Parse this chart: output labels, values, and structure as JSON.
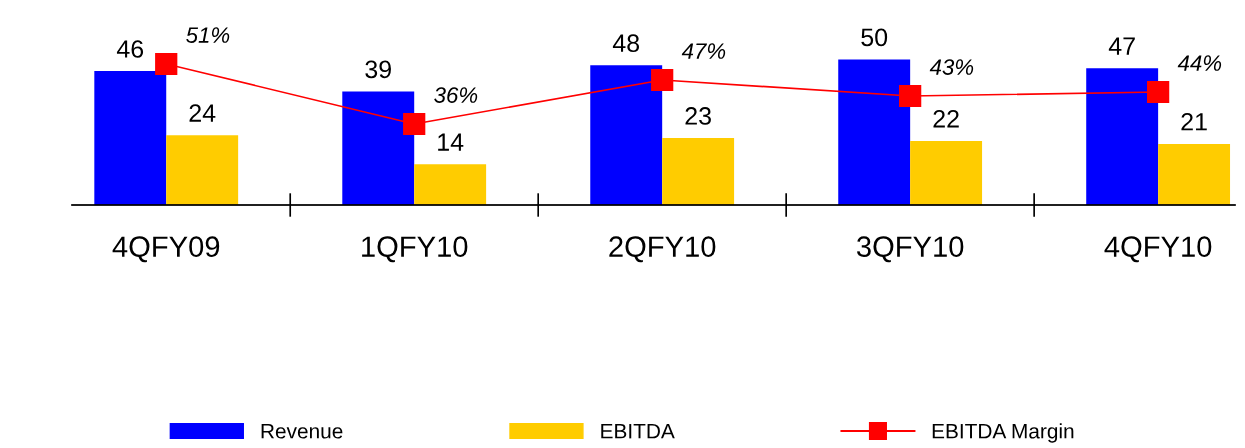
{
  "chart_data": {
    "type": "bar",
    "categories": [
      "4QFY09",
      "1QFY10",
      "2QFY10",
      "3QFY10",
      "4QFY10"
    ],
    "series": [
      {
        "name": "Revenue",
        "color": "#0000ff",
        "values": [
          46,
          39,
          48,
          50,
          47
        ]
      },
      {
        "name": "EBITDA",
        "color": "#ffcc00",
        "values": [
          24,
          14,
          23,
          22,
          21
        ]
      },
      {
        "name": "EBITDA Margin",
        "type": "line",
        "axis": "y2",
        "color": "#ff0000",
        "marker": "square",
        "values": [
          51,
          36,
          47,
          43,
          44
        ],
        "value_labels": [
          "51%",
          "36%",
          "47%",
          "43%",
          "44%"
        ]
      }
    ],
    "data_labels": true,
    "legend": "bottom",
    "grid": false,
    "tick_labels": "x"
  }
}
